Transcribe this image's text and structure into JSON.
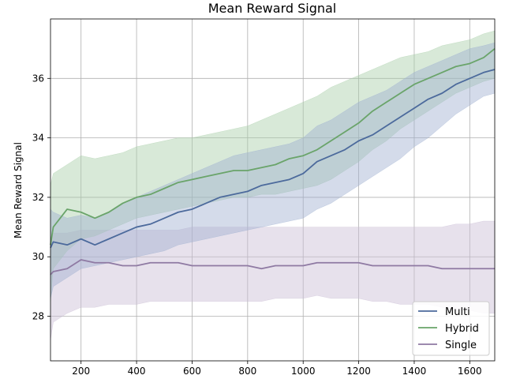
{
  "chart_data": {
    "type": "line",
    "title": "Mean Reward Signal",
    "xlabel": "",
    "ylabel": "Mean Reward Signal",
    "xlim": [
      90,
      1690
    ],
    "ylim": [
      26.5,
      38.0
    ],
    "xticks": [
      200,
      400,
      600,
      800,
      1000,
      1200,
      1400,
      1600
    ],
    "yticks": [
      28,
      30,
      32,
      34,
      36
    ],
    "grid": true,
    "legend_position": "lower-right",
    "x": [
      90,
      100,
      150,
      200,
      250,
      300,
      350,
      400,
      450,
      500,
      550,
      600,
      650,
      700,
      750,
      800,
      850,
      900,
      950,
      1000,
      1050,
      1100,
      1150,
      1200,
      1250,
      1300,
      1350,
      1400,
      1450,
      1500,
      1550,
      1600,
      1650,
      1690
    ],
    "series": [
      {
        "name": "Multi",
        "color": "#4c6a9c",
        "fill": "#9fb0d0",
        "values": [
          30.3,
          30.5,
          30.4,
          30.6,
          30.4,
          30.6,
          30.8,
          31.0,
          31.1,
          31.3,
          31.5,
          31.6,
          31.8,
          32.0,
          32.1,
          32.2,
          32.4,
          32.5,
          32.6,
          32.8,
          33.2,
          33.4,
          33.6,
          33.9,
          34.1,
          34.4,
          34.7,
          35.0,
          35.3,
          35.5,
          35.8,
          36.0,
          36.2,
          36.3
        ],
        "lower": [
          28.6,
          29.0,
          29.3,
          29.6,
          29.7,
          29.8,
          29.9,
          30.0,
          30.1,
          30.2,
          30.4,
          30.5,
          30.6,
          30.7,
          30.8,
          30.9,
          31.0,
          31.1,
          31.2,
          31.3,
          31.6,
          31.8,
          32.1,
          32.4,
          32.7,
          33.0,
          33.3,
          33.7,
          34.0,
          34.4,
          34.8,
          35.1,
          35.4,
          35.5
        ],
        "upper": [
          31.6,
          31.5,
          31.3,
          31.4,
          31.3,
          31.5,
          31.8,
          32.0,
          32.2,
          32.4,
          32.6,
          32.8,
          33.0,
          33.2,
          33.4,
          33.5,
          33.6,
          33.7,
          33.8,
          34.0,
          34.4,
          34.6,
          34.9,
          35.2,
          35.4,
          35.6,
          35.9,
          36.2,
          36.4,
          36.6,
          36.8,
          37.0,
          37.1,
          37.2
        ]
      },
      {
        "name": "Hybrid",
        "color": "#6aa46a",
        "fill": "#a9cfa9",
        "values": [
          30.4,
          31.0,
          31.6,
          31.5,
          31.3,
          31.5,
          31.8,
          32.0,
          32.1,
          32.3,
          32.5,
          32.6,
          32.7,
          32.8,
          32.9,
          32.9,
          33.0,
          33.1,
          33.3,
          33.4,
          33.6,
          33.9,
          34.2,
          34.5,
          34.9,
          35.2,
          35.5,
          35.8,
          36.0,
          36.2,
          36.4,
          36.5,
          36.7,
          37.0
        ],
        "lower": [
          28.5,
          29.6,
          30.2,
          30.6,
          30.7,
          30.9,
          31.1,
          31.3,
          31.4,
          31.5,
          31.6,
          31.7,
          31.8,
          31.9,
          32.0,
          32.0,
          32.1,
          32.1,
          32.2,
          32.3,
          32.4,
          32.6,
          32.9,
          33.2,
          33.6,
          33.9,
          34.3,
          34.6,
          34.9,
          35.2,
          35.5,
          35.7,
          35.9,
          36.0
        ],
        "upper": [
          32.4,
          32.8,
          33.1,
          33.4,
          33.3,
          33.4,
          33.5,
          33.7,
          33.8,
          33.9,
          34.0,
          34.0,
          34.1,
          34.2,
          34.3,
          34.4,
          34.6,
          34.8,
          35.0,
          35.2,
          35.4,
          35.7,
          35.9,
          36.1,
          36.3,
          36.5,
          36.7,
          36.8,
          36.9,
          37.1,
          37.2,
          37.3,
          37.5,
          37.6
        ]
      },
      {
        "name": "Single",
        "color": "#8f7aa3",
        "fill": "#c9bdd4",
        "values": [
          29.4,
          29.5,
          29.6,
          29.9,
          29.8,
          29.8,
          29.7,
          29.7,
          29.8,
          29.8,
          29.8,
          29.7,
          29.7,
          29.7,
          29.7,
          29.7,
          29.6,
          29.7,
          29.7,
          29.7,
          29.8,
          29.8,
          29.8,
          29.8,
          29.7,
          29.7,
          29.7,
          29.7,
          29.7,
          29.6,
          29.6,
          29.6,
          29.6,
          29.6
        ],
        "lower": [
          27.2,
          27.8,
          28.1,
          28.3,
          28.3,
          28.4,
          28.4,
          28.4,
          28.5,
          28.5,
          28.5,
          28.5,
          28.5,
          28.5,
          28.5,
          28.5,
          28.5,
          28.6,
          28.6,
          28.6,
          28.7,
          28.6,
          28.6,
          28.6,
          28.5,
          28.5,
          28.4,
          28.4,
          28.4,
          28.3,
          28.2,
          28.2,
          28.1,
          28.1
        ],
        "upper": [
          30.6,
          30.8,
          30.8,
          30.9,
          30.9,
          30.9,
          30.9,
          30.9,
          30.9,
          30.9,
          30.9,
          31.0,
          31.0,
          31.0,
          31.0,
          31.0,
          31.0,
          31.0,
          31.0,
          31.0,
          31.0,
          31.0,
          31.0,
          31.0,
          31.0,
          31.0,
          31.0,
          31.0,
          31.0,
          31.0,
          31.1,
          31.1,
          31.2,
          31.2
        ]
      }
    ]
  }
}
